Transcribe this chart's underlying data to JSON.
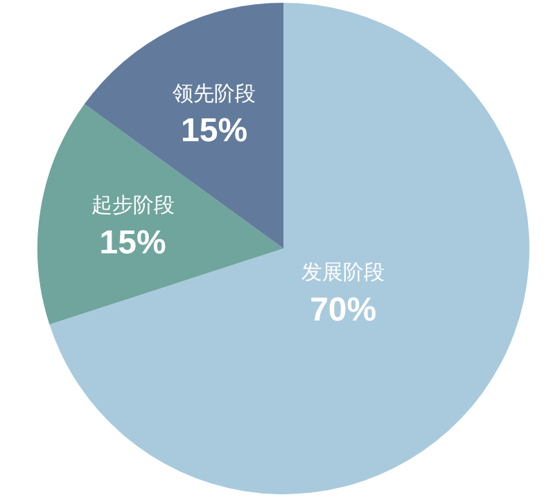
{
  "chart_data": {
    "type": "pie",
    "categories": [
      "发展阶段",
      "起步阶段",
      "领先阶段"
    ],
    "values": [
      70,
      15,
      15
    ],
    "colors": [
      "#a9cadd",
      "#6fa59c",
      "#627b9c"
    ],
    "value_labels": [
      "70%",
      "15%",
      "15%"
    ],
    "legend": false
  }
}
